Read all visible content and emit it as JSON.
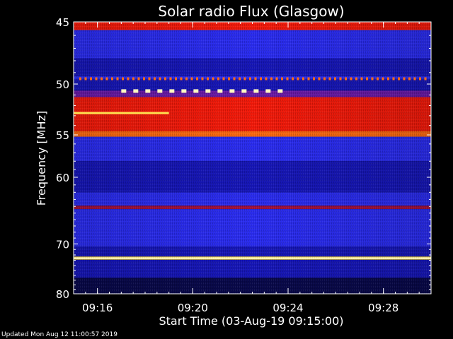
{
  "chart_data": {
    "type": "heatmap",
    "title": "Solar radio Flux (Glasgow)",
    "ylabel": "Frequency [MHz]",
    "xlabel": "Start Time (03-Aug-19 09:15:00)",
    "y_range": [
      45,
      80
    ],
    "y_scale": "reciprocal",
    "y_ticks": [
      45,
      50,
      55,
      60,
      70,
      80
    ],
    "x_ticks": [
      "09:16",
      "09:20",
      "09:24",
      "09:28"
    ],
    "x_range": [
      "09:15:00",
      "09:30:00"
    ],
    "colormap": [
      "#000000",
      "#1010ff",
      "#ff2000",
      "#ffff40",
      "#ffffff"
    ],
    "bands": [
      {
        "f1": 45.0,
        "f2": 45.6,
        "level": "red"
      },
      {
        "f1": 45.6,
        "f2": 47.8,
        "level": "blue"
      },
      {
        "f1": 47.8,
        "f2": 49.3,
        "level": "deep-blue"
      },
      {
        "f1": 49.3,
        "f2": 49.6,
        "level": "blue"
      },
      {
        "f1": 49.6,
        "f2": 50.6,
        "level": "deep-blue"
      },
      {
        "f1": 50.6,
        "f2": 51.2,
        "level": "purple"
      },
      {
        "f1": 51.2,
        "f2": 54.6,
        "level": "red"
      },
      {
        "f1": 54.6,
        "f2": 55.2,
        "level": "orange"
      },
      {
        "f1": 55.2,
        "f2": 58.0,
        "level": "blue"
      },
      {
        "f1": 58.0,
        "f2": 62.0,
        "level": "deep-blue"
      },
      {
        "f1": 62.0,
        "f2": 63.9,
        "level": "blue"
      },
      {
        "f1": 63.9,
        "f2": 64.4,
        "level": "maroon"
      },
      {
        "f1": 64.4,
        "f2": 70.5,
        "level": "blue"
      },
      {
        "f1": 70.5,
        "f2": 72.3,
        "level": "deep-blue"
      },
      {
        "f1": 72.3,
        "f2": 72.9,
        "level": "yellow"
      },
      {
        "f1": 72.9,
        "f2": 76.5,
        "level": "deep-blue"
      },
      {
        "f1": 76.5,
        "f2": 80.0,
        "level": "dark"
      }
    ],
    "features": [
      {
        "name": "dashed-line-49.5",
        "f": 49.5,
        "level": "orange"
      },
      {
        "name": "dashed-line-50.6",
        "f": 50.6,
        "level": "yellow"
      },
      {
        "name": "line-52.7",
        "f": 52.7,
        "level": "yellow",
        "x_end": "09:19:00"
      }
    ]
  },
  "footer": {
    "updated": "Updated Mon Aug 12 11:00:57 2019"
  }
}
